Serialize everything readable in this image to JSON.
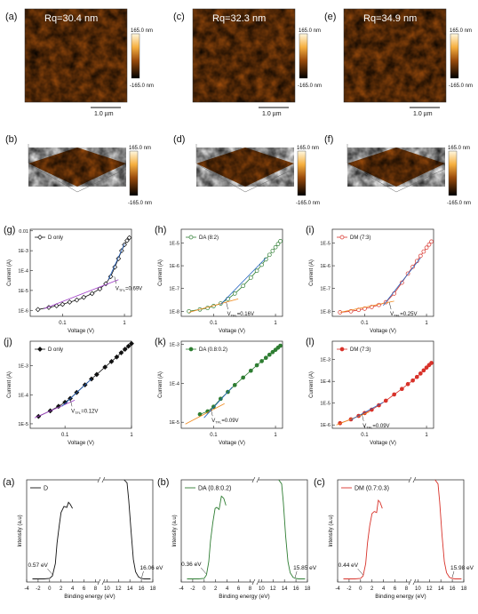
{
  "colors": {
    "black": "#111111",
    "green": "#2e7d32",
    "red": "#d8322a",
    "purple": "#a03cc8",
    "orange": "#f08a1e",
    "blue": "#2060c0",
    "afm_dark": "#3a1a04",
    "afm_mid": "#9a4b0c",
    "afm_light": "#f6c060"
  },
  "afm_images": [
    {
      "label": "(a)",
      "rq": "Rq=30.4 nm",
      "scale_top": "165.0 nm",
      "scale_bottom": "-165.0 nm",
      "scalebar": "1.0 µm"
    },
    {
      "label": "(c)",
      "rq": "Rq=32.3 nm",
      "scale_top": "165.0 nm",
      "scale_bottom": "-165.0 nm",
      "scalebar": "1.0 µm"
    },
    {
      "label": "(e)",
      "rq": "Rq=34.9 nm",
      "scale_top": "165.0 nm",
      "scale_bottom": "-165.0 nm",
      "scalebar": "1.0 µm"
    }
  ],
  "afm_3d": [
    {
      "label": "(b)",
      "scale_top": "165.0 nm",
      "scale_bottom": "-165.0 nm"
    },
    {
      "label": "(d)",
      "scale_top": "165.0 nm",
      "scale_bottom": "-165.0 nm"
    },
    {
      "label": "(f)",
      "scale_top": "165.0 nm",
      "scale_bottom": "-165.0 nm"
    }
  ],
  "chart_data": [
    {
      "type": "line",
      "panel": "(g)",
      "legend": "D only",
      "marker": "open-diamond",
      "color": "#111111",
      "xlabel": "Voltage (V)",
      "ylabel": "Current (A)",
      "xscale": "log",
      "yscale": "log",
      "xlim": [
        0.03,
        1.3
      ],
      "ylim": [
        5e-07,
        0.012
      ],
      "x_ticks": [
        {
          "v": 0.1,
          "l": "0.1"
        },
        {
          "v": 1,
          "l": "1"
        }
      ],
      "y_ticks": [
        {
          "v": 1e-06,
          "l": "1E-6"
        },
        {
          "v": 1e-05,
          "l": "1E-5"
        },
        {
          "v": 0.0001,
          "l": "1E-4"
        },
        {
          "v": 0.001,
          "l": "1E-3"
        },
        {
          "v": 0.01,
          "l": "0.01"
        }
      ],
      "x": [
        0.04,
        0.06,
        0.08,
        0.1,
        0.13,
        0.17,
        0.22,
        0.3,
        0.4,
        0.5,
        0.6,
        0.7,
        0.8,
        0.9,
        1.0,
        1.1,
        1.2
      ],
      "y": [
        1.1e-06,
        1.4e-06,
        1.7e-06,
        2e-06,
        2.6e-06,
        3.3e-06,
        4.5e-06,
        7e-06,
        1.2e-05,
        2.2e-05,
        5e-05,
        0.00015,
        0.0004,
        0.001,
        0.002,
        0.0032,
        0.0045
      ],
      "fits": [
        {
          "x": [
            0.05,
            0.8
          ],
          "y": [
            1.2e-06,
            3.5e-05
          ],
          "color": "#a03cc8"
        },
        {
          "x": [
            0.55,
            1.0
          ],
          "y": [
            3.5e-05,
            0.0022
          ],
          "color": "#2060c0"
        }
      ],
      "annotation": {
        "sym": "V",
        "sub": "TFL",
        "rest": "=0.69V",
        "at": [
          0.69,
          5e-05
        ]
      }
    },
    {
      "type": "line",
      "panel": "(h)",
      "legend": "DA (8:2)",
      "marker": "open-circle",
      "color": "#2e7d32",
      "xlabel": "Voltage (V)",
      "ylabel": "Current (A)",
      "xscale": "log",
      "yscale": "log",
      "xlim": [
        0.03,
        1.3
      ],
      "ylim": [
        6e-09,
        4e-05
      ],
      "x_ticks": [
        {
          "v": 0.1,
          "l": "0.1"
        },
        {
          "v": 1,
          "l": "1"
        }
      ],
      "y_ticks": [
        {
          "v": 1e-08,
          "l": "1E-8"
        },
        {
          "v": 1e-07,
          "l": "1E-7"
        },
        {
          "v": 1e-06,
          "l": "1E-6"
        },
        {
          "v": 1e-05,
          "l": "1E-5"
        }
      ],
      "x": [
        0.04,
        0.06,
        0.08,
        0.1,
        0.13,
        0.17,
        0.22,
        0.3,
        0.4,
        0.5,
        0.6,
        0.7,
        0.8,
        0.9,
        1.0,
        1.1,
        1.2
      ],
      "y": [
        1e-08,
        1.2e-08,
        1.4e-08,
        1.7e-08,
        2.2e-08,
        3.5e-08,
        6e-08,
        1.3e-07,
        3e-07,
        6e-07,
        1.1e-06,
        1.9e-06,
        3e-06,
        4.5e-06,
        6.5e-06,
        9e-06,
        1.2e-05
      ],
      "fits": [
        {
          "x": [
            0.04,
            0.25
          ],
          "y": [
            9e-09,
            3.5e-08
          ],
          "color": "#f08a1e"
        },
        {
          "x": [
            0.13,
            0.7
          ],
          "y": [
            2e-08,
            2.2e-06
          ],
          "color": "#2060c0"
        }
      ],
      "annotation": {
        "sym": "V",
        "sub": "TFL",
        "rest": "=0.16V",
        "at": [
          0.16,
          2.5e-08
        ]
      }
    },
    {
      "type": "line",
      "panel": "(i)",
      "legend": "DM (7:3)",
      "marker": "open-circle",
      "color": "#d8322a",
      "xlabel": "Voltage (V)",
      "ylabel": "Current (A)",
      "xscale": "log",
      "yscale": "log",
      "xlim": [
        0.03,
        1.3
      ],
      "ylim": [
        6e-09,
        4e-05
      ],
      "x_ticks": [
        {
          "v": 0.1,
          "l": "0.1"
        },
        {
          "v": 1,
          "l": "1"
        }
      ],
      "y_ticks": [
        {
          "v": 1e-08,
          "l": "1E-8"
        },
        {
          "v": 1e-07,
          "l": "1E-7"
        },
        {
          "v": 1e-06,
          "l": "1E-6"
        },
        {
          "v": 1e-05,
          "l": "1E-5"
        }
      ],
      "x": [
        0.04,
        0.06,
        0.08,
        0.1,
        0.13,
        0.17,
        0.22,
        0.3,
        0.4,
        0.5,
        0.6,
        0.7,
        0.8,
        0.9,
        1.0,
        1.1,
        1.2
      ],
      "y": [
        9e-09,
        1e-08,
        1.15e-08,
        1.3e-08,
        1.55e-08,
        1.9e-08,
        2.5e-08,
        6e-08,
        1.8e-07,
        4.5e-07,
        9e-07,
        1.6e-06,
        2.7e-06,
        4.2e-06,
        6.2e-06,
        8.5e-06,
        1.15e-05
      ],
      "fits": [
        {
          "x": [
            0.04,
            0.3
          ],
          "y": [
            9e-09,
            2.8e-08
          ],
          "color": "#f08a1e"
        },
        {
          "x": [
            0.2,
            0.8
          ],
          "y": [
            1.8e-08,
            2.2e-06
          ],
          "color": "#2060c0"
        }
      ],
      "annotation": {
        "sym": "V",
        "sub": "TFL",
        "rest": "=0.25V",
        "at": [
          0.25,
          2.5e-08
        ]
      }
    },
    {
      "type": "line",
      "panel": "(j)",
      "legend": "D only",
      "marker": "filled-diamond",
      "color": "#111111",
      "xlabel": "Voltage (V)",
      "ylabel": "Current (A)",
      "xscale": "log",
      "yscale": "log",
      "xlim": [
        0.03,
        1.0
      ],
      "ylim": [
        7e-06,
        0.007
      ],
      "x_ticks": [
        {
          "v": 0.1,
          "l": "0.1"
        },
        {
          "v": 1,
          "l": "1"
        }
      ],
      "y_ticks": [
        {
          "v": 1e-05,
          "l": "1E-5"
        },
        {
          "v": 0.0001,
          "l": "1E-4"
        },
        {
          "v": 0.001,
          "l": "1E-3"
        }
      ],
      "x": [
        0.04,
        0.06,
        0.08,
        0.1,
        0.12,
        0.15,
        0.2,
        0.25,
        0.3,
        0.4,
        0.5,
        0.6,
        0.7,
        0.8,
        0.9,
        1.0
      ],
      "y": [
        1.8e-05,
        2.8e-05,
        4e-05,
        5.5e-05,
        7.5e-05,
        0.00012,
        0.00022,
        0.00035,
        0.0005,
        0.0009,
        0.0014,
        0.002,
        0.0028,
        0.0037,
        0.0047,
        0.0058
      ],
      "fits": [
        {
          "x": [
            0.035,
            0.14
          ],
          "y": [
            1.6e-05,
            6.5e-05
          ],
          "color": "#a03cc8"
        },
        {
          "x": [
            0.09,
            0.25
          ],
          "y": [
            4e-05,
            0.00035
          ],
          "color": "#2060c0"
        }
      ],
      "annotation": {
        "sym": "V",
        "sub": "TFL",
        "rest": "=0.12V",
        "at": [
          0.12,
          7e-05
        ]
      }
    },
    {
      "type": "line",
      "panel": "(k)",
      "legend": "DA (0.8:0.2)",
      "marker": "filled-circle",
      "color": "#2e7d32",
      "xlabel": "Voltage (V)",
      "ylabel": "Current (A)",
      "xscale": "log",
      "yscale": "log",
      "xlim": [
        0.03,
        1.3
      ],
      "ylim": [
        7e-06,
        0.0012
      ],
      "x_ticks": [
        {
          "v": 0.1,
          "l": "0.1"
        },
        {
          "v": 1,
          "l": "1"
        }
      ],
      "y_ticks": [
        {
          "v": 1e-05,
          "l": "1E-5"
        },
        {
          "v": 0.0001,
          "l": "1E-4"
        },
        {
          "v": 0.001,
          "l": "1E-3"
        }
      ],
      "x": [
        0.06,
        0.08,
        0.1,
        0.13,
        0.17,
        0.22,
        0.3,
        0.4,
        0.5,
        0.6,
        0.7,
        0.8,
        0.9,
        1.0,
        1.1,
        1.2
      ],
      "y": [
        1.6e-05,
        1.9e-05,
        2.5e-05,
        4e-05,
        6e-05,
        9e-05,
        0.00014,
        0.00021,
        0.00029,
        0.00037,
        0.00045,
        0.00054,
        0.00063,
        0.00072,
        0.00082,
        0.00092
      ],
      "fits": [
        {
          "x": [
            0.035,
            0.15
          ],
          "y": [
            9e-06,
            3e-05
          ],
          "color": "#f08a1e"
        },
        {
          "x": [
            0.07,
            0.2
          ],
          "y": [
            1.3e-05,
            8e-05
          ],
          "color": "#2060c0"
        }
      ],
      "annotation": {
        "sym": "V",
        "sub": "TFL",
        "rest": "=0.09V",
        "at": [
          0.09,
          2.2e-05
        ]
      }
    },
    {
      "type": "line",
      "panel": "(l)",
      "legend": "DM (7:3)",
      "marker": "filled-circle",
      "color": "#d8322a",
      "xlabel": "Voltage (V)",
      "ylabel": "Current (A)",
      "xscale": "log",
      "yscale": "log",
      "xlim": [
        0.03,
        1.3
      ],
      "ylim": [
        7e-07,
        0.007
      ],
      "x_ticks": [
        {
          "v": 0.1,
          "l": "0.1"
        },
        {
          "v": 1,
          "l": "1"
        }
      ],
      "y_ticks": [
        {
          "v": 1e-06,
          "l": "1E-6"
        },
        {
          "v": 1e-05,
          "l": "1E-5"
        },
        {
          "v": 0.0001,
          "l": "1E-4"
        },
        {
          "v": 0.001,
          "l": "1E-3"
        }
      ],
      "x": [
        0.04,
        0.06,
        0.08,
        0.1,
        0.13,
        0.17,
        0.22,
        0.3,
        0.4,
        0.5,
        0.6,
        0.7,
        0.8,
        0.9,
        1.0,
        1.1,
        1.2
      ],
      "y": [
        1.2e-06,
        1.8e-06,
        2.6e-06,
        3.5e-06,
        5e-06,
        8e-06,
        1.3e-05,
        2.5e-05,
        4.5e-05,
        7.5e-05,
        0.00011,
        0.00016,
        0.00023,
        0.00032,
        0.00043,
        0.00056,
        0.0007
      ],
      "fits": [
        {
          "x": [
            0.035,
            0.12
          ],
          "y": [
            1e-06,
            4e-06
          ],
          "color": "#f08a1e"
        },
        {
          "x": [
            0.06,
            0.2
          ],
          "y": [
            1.7e-06,
            1.1e-05
          ],
          "color": "#2060c0"
        }
      ],
      "annotation": {
        "sym": "V",
        "sub": "TFL",
        "rest": "=0.09V",
        "at": [
          0.09,
          3.2e-06
        ]
      }
    },
    {
      "type": "line",
      "panel": "(a)",
      "legend": "D",
      "color": "#111111",
      "xlabel": "Binding energy (eV)",
      "ylabel": "Intensity (a.u)",
      "xlim": [
        -4,
        18
      ],
      "x_ticks": [
        -4,
        -2,
        0,
        2,
        4,
        6,
        8,
        10,
        12,
        14,
        16,
        18
      ],
      "x_break": [
        6,
        12
      ],
      "ylim": [
        0,
        1
      ],
      "segments": [
        {
          "x": [
            -3,
            -1,
            0,
            0.5,
            1.0,
            1.3,
            1.7,
            2.0,
            2.5,
            3.0,
            3.3,
            3.6,
            4.0
          ],
          "y": [
            0.03,
            0.03,
            0.035,
            0.06,
            0.18,
            0.38,
            0.56,
            0.68,
            0.74,
            0.73,
            0.78,
            0.76,
            0.72
          ]
        },
        {
          "x": [
            13.0,
            13.5,
            13.8,
            14.2,
            14.6,
            15.0,
            15.5,
            16.0,
            16.5,
            17.0,
            17.6
          ],
          "y": [
            1.0,
            0.97,
            0.8,
            0.5,
            0.22,
            0.1,
            0.05,
            0.035,
            0.03,
            0.03,
            0.03
          ]
        }
      ],
      "labels": [
        {
          "text": "0.57 eV",
          "at": [
            0.57,
            0.06
          ]
        },
        {
          "text": "16.06 eV",
          "at": [
            16.06,
            0.035
          ]
        }
      ]
    },
    {
      "type": "line",
      "panel": "(b)",
      "legend": "DA (0.8:0.2)",
      "color": "#2e7d32",
      "xlabel": "Binding energy (eV)",
      "ylabel": "Intensity (a.u)",
      "xlim": [
        -4,
        18
      ],
      "x_ticks": [
        -4,
        -2,
        0,
        2,
        4,
        6,
        8,
        10,
        12,
        14,
        16,
        18
      ],
      "x_break": [
        6,
        12
      ],
      "ylim": [
        0,
        1
      ],
      "segments": [
        {
          "x": [
            -3,
            -1,
            0,
            0.4,
            0.8,
            1.1,
            1.5,
            1.9,
            2.2,
            2.6,
            3.0,
            3.4,
            3.8
          ],
          "y": [
            0.03,
            0.03,
            0.035,
            0.07,
            0.2,
            0.4,
            0.58,
            0.72,
            0.73,
            0.71,
            0.84,
            0.82,
            0.75
          ]
        },
        {
          "x": [
            13.0,
            13.5,
            13.8,
            14.2,
            14.6,
            15.0,
            15.5,
            16.0,
            16.5,
            17.0,
            17.6
          ],
          "y": [
            1.0,
            0.96,
            0.78,
            0.45,
            0.2,
            0.09,
            0.045,
            0.035,
            0.03,
            0.03,
            0.03
          ]
        }
      ],
      "labels": [
        {
          "text": "0.36 eV",
          "at": [
            0.36,
            0.07
          ]
        },
        {
          "text": "15.85 eV",
          "at": [
            15.85,
            0.035
          ]
        }
      ]
    },
    {
      "type": "line",
      "panel": "(c)",
      "legend": "DM (0.7:0.3)",
      "color": "#d8322a",
      "xlabel": "Binding energy (eV)",
      "ylabel": "Intensity (a.u)",
      "xlim": [
        -4,
        18
      ],
      "x_ticks": [
        -4,
        -2,
        0,
        2,
        4,
        6,
        8,
        10,
        12,
        14,
        16,
        18
      ],
      "x_break": [
        6,
        12
      ],
      "ylim": [
        0,
        1
      ],
      "segments": [
        {
          "x": [
            -3,
            -1,
            0,
            0.45,
            0.9,
            1.2,
            1.6,
            2.0,
            2.4,
            2.8,
            3.1,
            3.4,
            3.8
          ],
          "y": [
            0.03,
            0.03,
            0.035,
            0.06,
            0.18,
            0.38,
            0.55,
            0.67,
            0.69,
            0.68,
            0.8,
            0.78,
            0.72
          ]
        },
        {
          "x": [
            13.0,
            13.5,
            13.8,
            14.2,
            14.6,
            15.0,
            15.5,
            16.0,
            16.5,
            17.0,
            17.6
          ],
          "y": [
            1.0,
            0.96,
            0.78,
            0.46,
            0.2,
            0.09,
            0.045,
            0.035,
            0.03,
            0.03,
            0.03
          ]
        }
      ],
      "labels": [
        {
          "text": "0.44 eV",
          "at": [
            0.44,
            0.06
          ]
        },
        {
          "text": "15.98 eV",
          "at": [
            15.98,
            0.035
          ]
        }
      ]
    }
  ]
}
